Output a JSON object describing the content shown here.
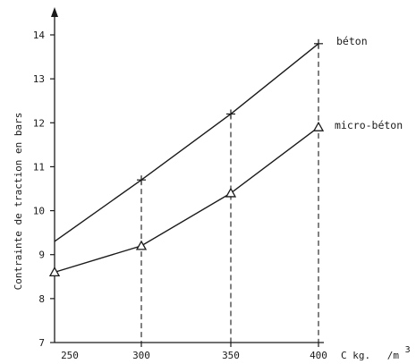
{
  "chart_data": {
    "type": "line",
    "title": "",
    "ylabel": "Contrainte de traction en bars",
    "xlabel_parts": [
      "C kg.",
      "/m",
      "3"
    ],
    "x_ticks": [
      "250",
      "300",
      "350",
      "400"
    ],
    "y_ticks": [
      "7",
      "8",
      "9",
      "10",
      "11",
      "12",
      "13",
      "14"
    ],
    "xlim": [
      243,
      400
    ],
    "ylim": [
      7,
      14.3
    ],
    "x_extrapolated_start": 243,
    "series": [
      {
        "name": "béton",
        "marker": "plus",
        "x": [
          243,
          300,
          350,
          400
        ],
        "y": [
          9.3,
          10.7,
          12.2,
          13.8
        ]
      },
      {
        "name": "micro-béton",
        "marker": "triangle",
        "x": [
          243,
          300,
          350,
          400
        ],
        "y": [
          8.6,
          9.2,
          10.4,
          11.9
        ]
      }
    ],
    "dashed_drop_lines_at_x": [
      300,
      350,
      400
    ],
    "grid": false
  }
}
